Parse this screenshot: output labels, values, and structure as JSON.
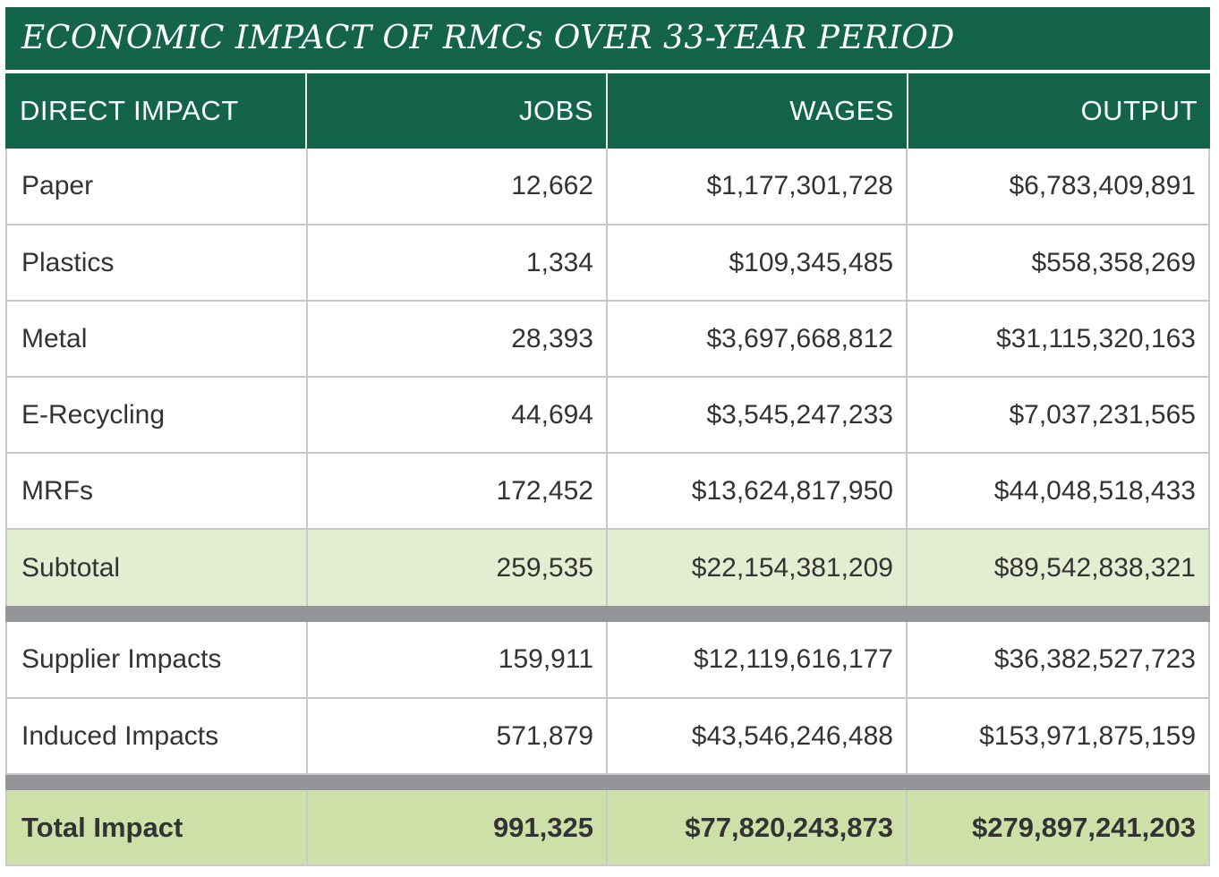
{
  "title": "ECONOMIC IMPACT OF RMCs OVER 33-YEAR PERIOD",
  "colors": {
    "header_green": "#13644a",
    "subtotal_fill": "#e3edd0",
    "total_fill": "#cde0a8",
    "separator_gray": "#939598"
  },
  "table": {
    "columns": [
      "DIRECT IMPACT",
      "JOBS",
      "WAGES",
      "OUTPUT"
    ],
    "direct_rows": [
      {
        "label": "Paper",
        "jobs": "12,662",
        "wages": "$1,177,301,728",
        "output": "$6,783,409,891"
      },
      {
        "label": "Plastics",
        "jobs": "1,334",
        "wages": "$109,345,485",
        "output": "$558,358,269"
      },
      {
        "label": "Metal",
        "jobs": "28,393",
        "wages": "$3,697,668,812",
        "output": "$31,115,320,163"
      },
      {
        "label": "E-Recycling",
        "jobs": "44,694",
        "wages": "$3,545,247,233",
        "output": "$7,037,231,565"
      },
      {
        "label": "MRFs",
        "jobs": "172,452",
        "wages": "$13,624,817,950",
        "output": "$44,048,518,433"
      }
    ],
    "subtotal": {
      "label": "Subtotal",
      "jobs": "259,535",
      "wages": "$22,154,381,209",
      "output": "$89,542,838,321"
    },
    "indirect_rows": [
      {
        "label": "Supplier Impacts",
        "jobs": "159,911",
        "wages": "$12,119,616,177",
        "output": "$36,382,527,723"
      },
      {
        "label": "Induced Impacts",
        "jobs": "571,879",
        "wages": "$43,546,246,488",
        "output": "$153,971,875,159"
      }
    ],
    "total": {
      "label": "Total Impact",
      "jobs": "991,325",
      "wages": "$77,820,243,873",
      "output": "$279,897,241,203"
    }
  }
}
